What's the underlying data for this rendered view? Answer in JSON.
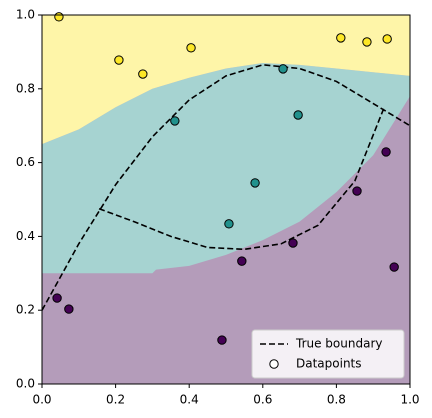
{
  "chart_data": {
    "type": "scatter",
    "xlim": [
      0,
      1
    ],
    "ylim": [
      0,
      1
    ],
    "xticks": [
      {
        "value": 0,
        "label": "0.0"
      },
      0.2,
      0.4,
      0.6,
      0.8,
      {
        "value": 1,
        "label": "1.0"
      }
    ],
    "yticks": [
      {
        "value": 0,
        "label": "0.0"
      },
      0.2,
      0.4,
      0.6,
      0.8,
      {
        "value": 1,
        "label": "1.0"
      }
    ],
    "regions": {
      "below_color": "#b49cba",
      "middle_color": "#a6d3d1",
      "above_color": "#fef5a8",
      "lower_edge": {
        "x": [
          0,
          0.3,
          0.31,
          0.4,
          0.5,
          0.6,
          0.7,
          0.8,
          0.9,
          0.95,
          1
        ],
        "y": [
          0.3,
          0.3,
          0.31,
          0.32,
          0.35,
          0.39,
          0.44,
          0.52,
          0.62,
          0.7,
          0.78
        ]
      },
      "upper_edge": {
        "x": [
          0,
          0.1,
          0.2,
          0.3,
          0.4,
          0.5,
          0.6,
          0.7,
          0.8,
          0.9,
          1
        ],
        "y": [
          0.65,
          0.69,
          0.75,
          0.8,
          0.83,
          0.855,
          0.87,
          0.865,
          0.855,
          0.845,
          0.835
        ]
      }
    },
    "boundary": {
      "name": "True boundary",
      "color": "#000000",
      "x": [
        0,
        0.1,
        0.2,
        0.3,
        0.4,
        0.5,
        0.6,
        0.7,
        0.8,
        0.9,
        1,
        null,
        0.155,
        0.25,
        0.35,
        0.45,
        0.55,
        0.65,
        0.75,
        0.85,
        0.93
      ],
      "y": [
        0.2,
        0.38,
        0.54,
        0.67,
        0.77,
        0.835,
        0.865,
        0.855,
        0.82,
        0.76,
        0.7,
        null,
        0.475,
        0.44,
        0.4,
        0.37,
        0.365,
        0.38,
        0.43,
        0.55,
        0.75
      ]
    },
    "points": {
      "name": "Datapoints",
      "edgecolor": "#000000",
      "series": [
        {
          "color": "#fde725",
          "x": [
            0.046,
            0.209,
            0.274,
            0.405,
            0.812,
            0.883,
            0.938
          ],
          "y": [
            0.995,
            0.878,
            0.84,
            0.911,
            0.938,
            0.927,
            0.935
          ]
        },
        {
          "color": "#21918c",
          "x": [
            0.655,
            0.361,
            0.696,
            0.579,
            0.508
          ],
          "y": [
            0.854,
            0.713,
            0.729,
            0.545,
            0.434
          ]
        },
        {
          "color": "#440154",
          "x": [
            0.041,
            0.073,
            0.489,
            0.543,
            0.682,
            0.856,
            0.935,
            0.957
          ],
          "y": [
            0.233,
            0.203,
            0.119,
            0.333,
            0.382,
            0.523,
            0.629,
            0.317
          ]
        }
      ]
    },
    "legend": "lower right"
  }
}
